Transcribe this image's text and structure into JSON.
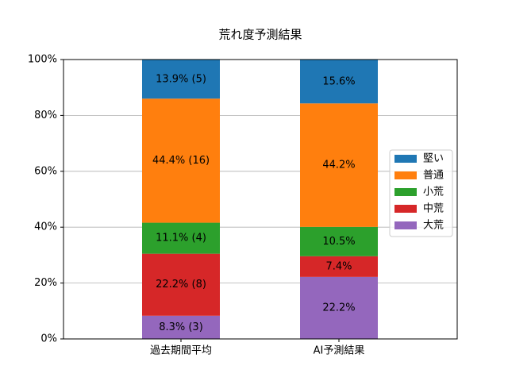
{
  "chart_data": {
    "type": "stacked_bar",
    "title": "荒れ度予測結果",
    "categories": [
      "過去期間平均",
      "AI予測結果"
    ],
    "series": [
      {
        "name": "堅い",
        "color": "#1f77b4",
        "values": [
          13.9,
          15.6
        ],
        "value_labels": [
          "13.9% (5)",
          "15.6%"
        ]
      },
      {
        "name": "普通",
        "color": "#ff7f0e",
        "values": [
          44.4,
          44.2
        ],
        "value_labels": [
          "44.4% (16)",
          "44.2%"
        ]
      },
      {
        "name": "小荒",
        "color": "#2ca02c",
        "values": [
          11.1,
          10.5
        ],
        "value_labels": [
          "11.1% (4)",
          "10.5%"
        ]
      },
      {
        "name": "中荒",
        "color": "#d62728",
        "values": [
          22.2,
          7.4
        ],
        "value_labels": [
          "22.2% (8)",
          "7.4%"
        ]
      },
      {
        "name": "大荒",
        "color": "#9467bd",
        "values": [
          8.3,
          22.2
        ],
        "value_labels": [
          "8.3% (3)",
          "22.2%"
        ]
      }
    ],
    "ylim": [
      0,
      100
    ],
    "yticks": [
      {
        "value": 0,
        "label": "0%"
      },
      {
        "value": 20,
        "label": "20%"
      },
      {
        "value": 40,
        "label": "40%"
      },
      {
        "value": 60,
        "label": "60%"
      },
      {
        "value": 80,
        "label": "80%"
      },
      {
        "value": 100,
        "label": "100%"
      }
    ],
    "grid": true,
    "legend": "right"
  }
}
